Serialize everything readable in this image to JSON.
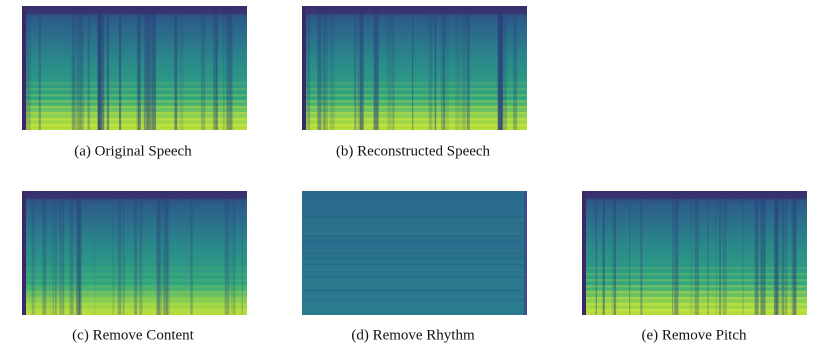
{
  "figure": {
    "panels": [
      {
        "caption": "(a) Original Speech"
      },
      {
        "caption": "(b) Reconstructed Speech"
      },
      {
        "caption": "(c) Remove Content"
      },
      {
        "caption": "(d) Remove Rhythm"
      },
      {
        "caption": "(e) Remove Pitch"
      }
    ]
  }
}
